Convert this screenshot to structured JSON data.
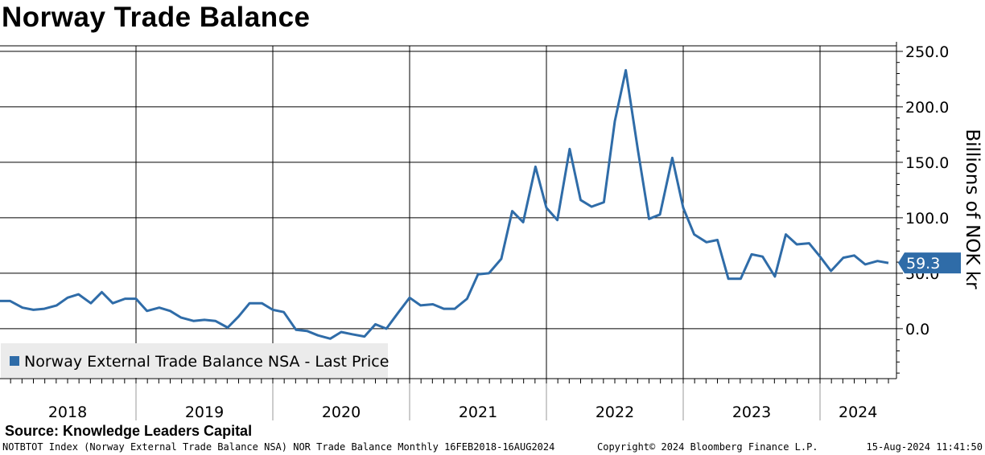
{
  "title": "Norway Trade Balance",
  "source": "Source: Knowledge Leaders Capital",
  "footer": {
    "left": "NOTBTOT Index (Norway External Trade Balance NSA) NOR Trade Balance  Monthly 16FEB2018-16AUG2024",
    "middle": "Copyright© 2024 Bloomberg Finance L.P.",
    "right": "15-Aug-2024 11:41:50"
  },
  "colors": {
    "series": "#2f6ca8",
    "grid": "#000000",
    "legend_bg": "#ebebeb"
  },
  "chart_data": {
    "type": "line",
    "title": "Norway Trade Balance",
    "ylabel": "Billions of NOK kr",
    "xlabel": "",
    "ylim": [
      -45,
      255
    ],
    "yticks": [
      0,
      50,
      100,
      150,
      200,
      250
    ],
    "ytick_labels": [
      "0.0",
      "50.0",
      "100.0",
      "150.0",
      "200.0",
      "250.0"
    ],
    "x_categories": [
      "2018",
      "2019",
      "2020",
      "2021",
      "2022",
      "2023",
      "2024"
    ],
    "legend": "Norway External Trade Balance NSA - Last Price",
    "last_value": 59.3,
    "last_label": "59.3",
    "series": [
      {
        "name": "Norway External Trade Balance NSA - Last Price",
        "x": [
          2018.08,
          2018.17,
          2018.25,
          2018.33,
          2018.42,
          2018.5,
          2018.58,
          2018.67,
          2018.75,
          2018.83,
          2018.92,
          2019.0,
          2019.08,
          2019.17,
          2019.25,
          2019.33,
          2019.42,
          2019.5,
          2019.58,
          2019.67,
          2019.75,
          2019.83,
          2019.92,
          2020.0,
          2020.08,
          2020.17,
          2020.25,
          2020.33,
          2020.42,
          2020.5,
          2020.58,
          2020.67,
          2020.75,
          2020.83,
          2020.92,
          2021.0,
          2021.08,
          2021.17,
          2021.25,
          2021.33,
          2021.42,
          2021.5,
          2021.58,
          2021.67,
          2021.75,
          2021.83,
          2021.92,
          2022.0,
          2022.08,
          2022.17,
          2022.25,
          2022.33,
          2022.42,
          2022.5,
          2022.58,
          2022.67,
          2022.75,
          2022.83,
          2022.92,
          2023.0,
          2023.08,
          2023.17,
          2023.25,
          2023.33,
          2023.42,
          2023.5,
          2023.58,
          2023.67,
          2023.75,
          2023.83,
          2023.92,
          2024.0,
          2024.08,
          2024.17,
          2024.25,
          2024.33,
          2024.42,
          2024.5
        ],
        "values": [
          25,
          19,
          17,
          18,
          21,
          28,
          31,
          23,
          33,
          23,
          27,
          27,
          16,
          19,
          16,
          10,
          7,
          8,
          7,
          1,
          11,
          23,
          23,
          17,
          15,
          -1,
          -2,
          -6,
          -9,
          -3,
          -5,
          -7,
          4,
          0,
          15,
          28,
          21,
          22,
          18,
          18,
          27,
          49,
          50,
          63,
          106,
          96,
          146,
          109,
          98,
          162,
          116,
          110,
          114,
          187,
          233,
          160,
          99,
          103,
          154,
          109,
          85,
          78,
          80,
          45,
          45,
          67,
          65,
          47,
          85,
          76,
          77,
          65,
          52,
          64,
          66,
          58,
          61,
          59.3
        ]
      }
    ]
  }
}
